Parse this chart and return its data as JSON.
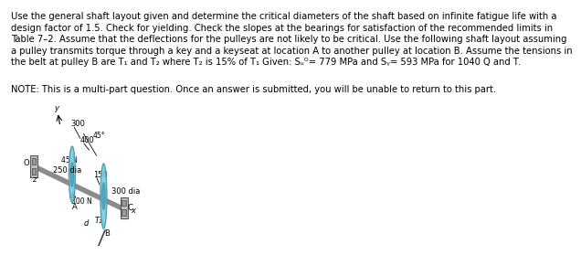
{
  "bg_color": "#ffffff",
  "text_color": "#000000",
  "pulley_color": "#7EC8E3",
  "pulley_edge": "#4499AA",
  "shaft_color": "#8B8B8B",
  "bearing_color": "#AAAAAA",
  "bearing_edge": "#555555",
  "body_line1": "Use the general shaft layout given and determine the critical diameters of the shaft based on infinite fatigue life with a",
  "body_line2": "design factor of 1.5. Check for yielding. Check the slopes at the bearings for satisfaction of the recommended limits in",
  "body_line3": "Table 7–2. Assume that the deflections for the pulleys are not likely to be critical. Use the following shaft layout assuming",
  "body_line4": "a pulley transmits torque through a key and a keyseat at location A to another pulley at location B. Assume the tensions in",
  "body_line5": "the belt at pulley B are T₁ and T₂ where T₂ is 15% of T₁ Given: Sᵤᴼ= 779 MPa and Sᵧ= 593 MPa for 1040 Q and T.",
  "note_text": "NOTE: This is a multi-part question. Once an answer is submitted, you will be unable to return to this part.",
  "font_size_body": 7.2,
  "font_size_note": 7.2,
  "font_size_label": 6.0,
  "font_size_small": 5.5
}
